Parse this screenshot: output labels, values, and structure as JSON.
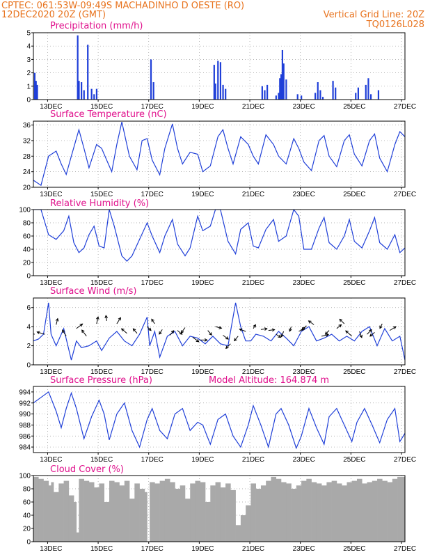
{
  "header": {
    "line1_left": "CPTEC:   061:53W-09:49S   MACHADINHO D OESTE (RO)",
    "line2_left": "12DEC2020 20Z (GMT)",
    "line2_right": "Vertical Grid Line: 20Z",
    "line3_right": "TQ0126L028"
  },
  "colors": {
    "header": "#e8731e",
    "title": "#e0108c",
    "series": "#1f3fd8",
    "bars": "#1f3fd8",
    "cloud": "#a9a9a9",
    "grid": "#999999"
  },
  "x_axis": {
    "range_days": [
      12.3,
      27.0
    ],
    "tick_labels": [
      "13DEC",
      "15DEC",
      "17DEC",
      "19DEC",
      "21DEC",
      "23DEC",
      "25DEC",
      "27DEC"
    ],
    "tick_days": [
      13,
      15,
      17,
      19,
      21,
      23,
      25,
      27
    ],
    "grid_note": "Vertical Grid Line: 20Z"
  },
  "chart_data": [
    {
      "type": "bar",
      "title": "Precipitation (mm/h)",
      "ylim": [
        0,
        5
      ],
      "yticks": [
        0,
        1,
        2,
        3,
        4,
        5
      ],
      "x": [
        12.35,
        12.4,
        12.45,
        14.05,
        14.1,
        14.2,
        14.3,
        14.45,
        14.6,
        14.7,
        14.8,
        16.95,
        17.05,
        19.45,
        19.5,
        19.6,
        19.7,
        19.8,
        19.9,
        21.35,
        21.45,
        21.55,
        21.9,
        22.0,
        22.05,
        22.1,
        22.15,
        22.2,
        22.3,
        22.75,
        22.9,
        23.45,
        23.55,
        23.65,
        23.75,
        24.15,
        24.25,
        25.05,
        25.15,
        25.45,
        25.55,
        25.65,
        25.95
      ],
      "values": [
        2.0,
        1.4,
        1.1,
        4.8,
        1.4,
        1.3,
        0.7,
        4.1,
        0.8,
        0.4,
        0.8,
        3.0,
        1.3,
        2.6,
        1.2,
        2.9,
        2.8,
        1.1,
        0.8,
        1.0,
        0.7,
        1.1,
        0.3,
        0.5,
        1.6,
        1.9,
        3.7,
        2.7,
        1.5,
        0.4,
        0.3,
        0.5,
        1.3,
        0.7,
        0.2,
        1.4,
        0.9,
        0.5,
        0.9,
        1.1,
        1.6,
        0.4,
        0.7
      ]
    },
    {
      "type": "line",
      "title": "Surface Temperature (nC)",
      "ylim": [
        20,
        37
      ],
      "yticks": [
        20,
        24,
        28,
        32,
        36
      ],
      "x": [
        12.3,
        12.6,
        12.9,
        13.2,
        13.4,
        13.6,
        13.8,
        14.1,
        14.3,
        14.5,
        14.8,
        15.0,
        15.2,
        15.4,
        15.6,
        15.8,
        16.1,
        16.4,
        16.6,
        16.8,
        17.0,
        17.3,
        17.5,
        17.8,
        18.0,
        18.2,
        18.5,
        18.8,
        19.0,
        19.3,
        19.6,
        19.8,
        20.0,
        20.2,
        20.5,
        20.8,
        21.0,
        21.2,
        21.5,
        21.8,
        22.0,
        22.3,
        22.6,
        22.8,
        23.0,
        23.3,
        23.6,
        23.8,
        24.0,
        24.3,
        24.6,
        24.8,
        25.0,
        25.3,
        25.6,
        25.8,
        26.0,
        26.3,
        26.6,
        26.8,
        27.0
      ],
      "values": [
        21.8,
        20.5,
        28,
        29.3,
        26,
        23.3,
        28,
        34.8,
        30,
        25,
        31,
        30,
        27,
        24,
        31,
        36.8,
        28,
        24.5,
        32,
        32.5,
        27,
        23.2,
        30,
        36.3,
        30,
        26,
        29,
        28.5,
        24,
        25.5,
        33,
        34.8,
        30,
        26,
        33,
        31,
        28,
        26,
        33.5,
        31,
        28,
        26,
        32.5,
        30,
        26.5,
        24.3,
        32,
        33.3,
        28,
        25.3,
        32,
        33.5,
        28.5,
        25.5,
        32,
        33.7,
        27.5,
        24,
        31,
        34.3,
        33
      ]
    },
    {
      "type": "line",
      "title": "Relative Humidity (%)",
      "ylim": [
        0,
        100
      ],
      "yticks": [
        0,
        20,
        40,
        60,
        80,
        100
      ],
      "x": [
        12.3,
        12.6,
        12.9,
        13.2,
        13.5,
        13.7,
        13.9,
        14.1,
        14.3,
        14.5,
        14.7,
        14.9,
        15.1,
        15.3,
        15.5,
        15.8,
        16.0,
        16.2,
        16.5,
        16.8,
        17.0,
        17.3,
        17.5,
        17.8,
        18.0,
        18.3,
        18.5,
        18.8,
        19.0,
        19.3,
        19.5,
        19.7,
        20.0,
        20.3,
        20.5,
        20.8,
        21.0,
        21.2,
        21.5,
        21.8,
        22.0,
        22.3,
        22.6,
        22.8,
        23.0,
        23.3,
        23.6,
        23.8,
        24.0,
        24.3,
        24.6,
        24.8,
        25.0,
        25.3,
        25.6,
        25.8,
        26.0,
        26.3,
        26.6,
        26.8,
        27.0
      ],
      "values": [
        100,
        100,
        62,
        55,
        68,
        90,
        50,
        35,
        42,
        62,
        75,
        45,
        42,
        100,
        75,
        30,
        22,
        30,
        55,
        80,
        60,
        35,
        60,
        85,
        48,
        30,
        42,
        90,
        68,
        75,
        100,
        100,
        52,
        33,
        70,
        80,
        45,
        42,
        70,
        85,
        52,
        60,
        100,
        90,
        40,
        40,
        72,
        88,
        50,
        40,
        60,
        85,
        52,
        42,
        68,
        88,
        50,
        40,
        62,
        35,
        42
      ]
    },
    {
      "type": "line",
      "title": "Surface Wind (m/s)",
      "ylim": [
        0,
        7
      ],
      "yticks": [
        0,
        2,
        4,
        6
      ],
      "x": [
        12.3,
        12.5,
        12.7,
        12.9,
        13.0,
        13.2,
        13.5,
        13.8,
        14.0,
        14.2,
        14.5,
        14.8,
        15.0,
        15.3,
        15.6,
        15.9,
        16.2,
        16.5,
        16.8,
        16.9,
        17.1,
        17.3,
        17.6,
        17.9,
        18.2,
        18.5,
        18.8,
        19.1,
        19.4,
        19.7,
        20.0,
        20.3,
        20.5,
        20.7,
        20.9,
        21.1,
        21.4,
        21.7,
        22.0,
        22.3,
        22.6,
        22.9,
        23.2,
        23.5,
        23.8,
        24.1,
        24.4,
        24.7,
        25.0,
        25.3,
        25.6,
        25.9,
        26.2,
        26.5,
        26.8,
        27.0
      ],
      "values": [
        2.5,
        2.7,
        3.2,
        6.5,
        3.2,
        2.0,
        3.8,
        0.5,
        2.5,
        1.8,
        2.0,
        2.5,
        1.5,
        2.8,
        3.5,
        2.5,
        2.0,
        3.2,
        5.0,
        2.0,
        3.5,
        0.8,
        3.0,
        3.5,
        2.0,
        3.0,
        2.8,
        2.2,
        3.0,
        2.2,
        2.0,
        6.5,
        4.0,
        2.5,
        2.5,
        3.2,
        3.0,
        2.5,
        3.5,
        2.8,
        2.0,
        3.5,
        4.0,
        2.5,
        2.8,
        3.2,
        2.5,
        3.0,
        2.5,
        3.5,
        4.0,
        2.0,
        3.8,
        2.5,
        3.0,
        0.5
      ],
      "vectors": {
        "x": [
          12.35,
          12.75,
          13.2,
          13.6,
          14.0,
          14.4,
          14.8,
          15.2,
          15.6,
          16.0,
          16.4,
          16.8,
          17.1,
          17.4,
          17.7,
          18.0,
          18.3,
          18.6,
          18.9,
          19.2,
          19.5,
          19.8,
          20.1,
          20.4,
          20.7,
          21.0,
          21.3,
          21.6,
          21.9,
          22.2,
          22.5,
          22.8,
          23.1,
          23.4,
          23.7,
          24.0,
          24.3,
          24.6,
          24.9,
          25.2,
          25.5,
          25.8,
          26.1,
          26.4
        ],
        "y": [
          3.2,
          3.2,
          4.2,
          3.0,
          3.8,
          3.0,
          4.3,
          4.6,
          4.3,
          3.3,
          3.3,
          4.0,
          4.3,
          3.7,
          3.1,
          3.6,
          3.9,
          2.9,
          2.6,
          3.6,
          4.0,
          3.1,
          2.2,
          3.0,
          3.5,
          3.8,
          3.7,
          3.6,
          3.2,
          3.5,
          4.0,
          3.5,
          4.1,
          4.2,
          3.0,
          3.6,
          3.8,
          4.3,
          3.0,
          3.5,
          3.2,
          3.4,
          4.3,
          3.6
        ],
        "u": [
          -1,
          -1,
          0.2,
          -0.5,
          0.8,
          -0.6,
          0.2,
          -0.1,
          0.5,
          -0.7,
          -0.5,
          0.5,
          -0.4,
          -0.4,
          0.5,
          0.6,
          -0.5,
          0.8,
          0.9,
          0.5,
          0.8,
          0.7,
          -0.6,
          -0.5,
          -0.8,
          0.3,
          0.8,
          0.8,
          0.6,
          -0.3,
          -0.2,
          0.8,
          -0.6,
          -0.7,
          0.9,
          -0.5,
          0.6,
          -0.6,
          -0.8,
          0.3,
          0.6,
          -0.6,
          -0.3,
          0.8
        ],
        "v": [
          0.3,
          0.3,
          0.8,
          0.8,
          0.6,
          0.8,
          0.9,
          0.7,
          0.8,
          0.6,
          0.6,
          -0.5,
          0.6,
          -0.6,
          0.6,
          -0.5,
          -0.7,
          -0.6,
          0.0,
          -0.6,
          -0.2,
          -0.5,
          -0.6,
          -0.6,
          0.3,
          0.5,
          0.1,
          0.1,
          -0.4,
          -0.7,
          -0.6,
          0.5,
          -0.6,
          0.5,
          0.2,
          -0.5,
          0.5,
          0.6,
          0.7,
          -0.8,
          0.6,
          -0.5,
          -0.6,
          0.5
        ]
      }
    },
    {
      "type": "line",
      "title": "Surface Pressure (hPa)",
      "annotation": "Model Altitude: 164.874 m",
      "ylim": [
        983,
        995
      ],
      "yticks": [
        984,
        986,
        988,
        990,
        992,
        994
      ],
      "x": [
        12.3,
        12.6,
        12.9,
        13.2,
        13.4,
        13.6,
        13.8,
        14.0,
        14.3,
        14.6,
        14.9,
        15.1,
        15.3,
        15.6,
        15.9,
        16.2,
        16.5,
        16.8,
        17.0,
        17.3,
        17.6,
        17.9,
        18.2,
        18.5,
        18.8,
        19.0,
        19.3,
        19.6,
        19.9,
        20.2,
        20.5,
        20.8,
        21.0,
        21.3,
        21.6,
        21.9,
        22.1,
        22.4,
        22.7,
        22.9,
        23.2,
        23.5,
        23.8,
        24.0,
        24.3,
        24.6,
        24.9,
        25.1,
        25.4,
        25.7,
        26.0,
        26.3,
        26.6,
        26.8,
        27.0
      ],
      "values": [
        992,
        993,
        994,
        990.5,
        987.5,
        991,
        993.8,
        991,
        985.5,
        989.5,
        992.5,
        990,
        985.3,
        990,
        992,
        987,
        984,
        989,
        991,
        987,
        985.5,
        990,
        991,
        987,
        988.5,
        988,
        984.5,
        989,
        990,
        986,
        984,
        988,
        991.5,
        988,
        984,
        990,
        991,
        988,
        983.8,
        986,
        991,
        987.5,
        984.5,
        989.5,
        991,
        988,
        985,
        988.5,
        991,
        988,
        984.8,
        989,
        991,
        985,
        986.5
      ]
    },
    {
      "type": "area",
      "title": "Cloud Cover (%)",
      "ylim": [
        0,
        100
      ],
      "yticks": [
        0,
        20,
        40,
        60,
        80,
        100
      ],
      "x": [
        12.3,
        12.5,
        12.7,
        12.9,
        13.0,
        13.1,
        13.3,
        13.5,
        13.7,
        13.9,
        14.0,
        14.1,
        14.3,
        14.5,
        14.7,
        14.9,
        15.1,
        15.3,
        15.5,
        15.7,
        15.9,
        16.1,
        16.3,
        16.5,
        16.7,
        16.8,
        16.9,
        17.1,
        17.3,
        17.5,
        17.7,
        17.9,
        18.1,
        18.3,
        18.5,
        18.7,
        18.9,
        19.1,
        19.3,
        19.5,
        19.7,
        19.9,
        20.1,
        20.3,
        20.5,
        20.7,
        20.9,
        21.1,
        21.3,
        21.5,
        21.7,
        21.9,
        22.1,
        22.3,
        22.5,
        22.7,
        22.9,
        23.1,
        23.3,
        23.5,
        23.7,
        23.9,
        24.1,
        24.3,
        24.5,
        24.7,
        24.9,
        25.1,
        25.3,
        25.5,
        25.7,
        25.9,
        26.1,
        26.3,
        26.5,
        26.7,
        27.0
      ],
      "values": [
        98,
        95,
        92,
        85,
        90,
        75,
        88,
        92,
        70,
        60,
        14,
        95,
        92,
        90,
        82,
        88,
        60,
        92,
        90,
        85,
        92,
        65,
        88,
        80,
        75,
        0,
        90,
        88,
        92,
        95,
        90,
        80,
        85,
        65,
        88,
        92,
        90,
        60,
        85,
        90,
        82,
        88,
        78,
        25,
        40,
        55,
        88,
        80,
        85,
        92,
        98,
        95,
        90,
        88,
        80,
        85,
        92,
        95,
        90,
        88,
        85,
        90,
        92,
        88,
        85,
        90,
        92,
        95,
        88,
        90,
        92,
        95,
        92,
        90,
        95,
        98,
        96
      ]
    }
  ]
}
